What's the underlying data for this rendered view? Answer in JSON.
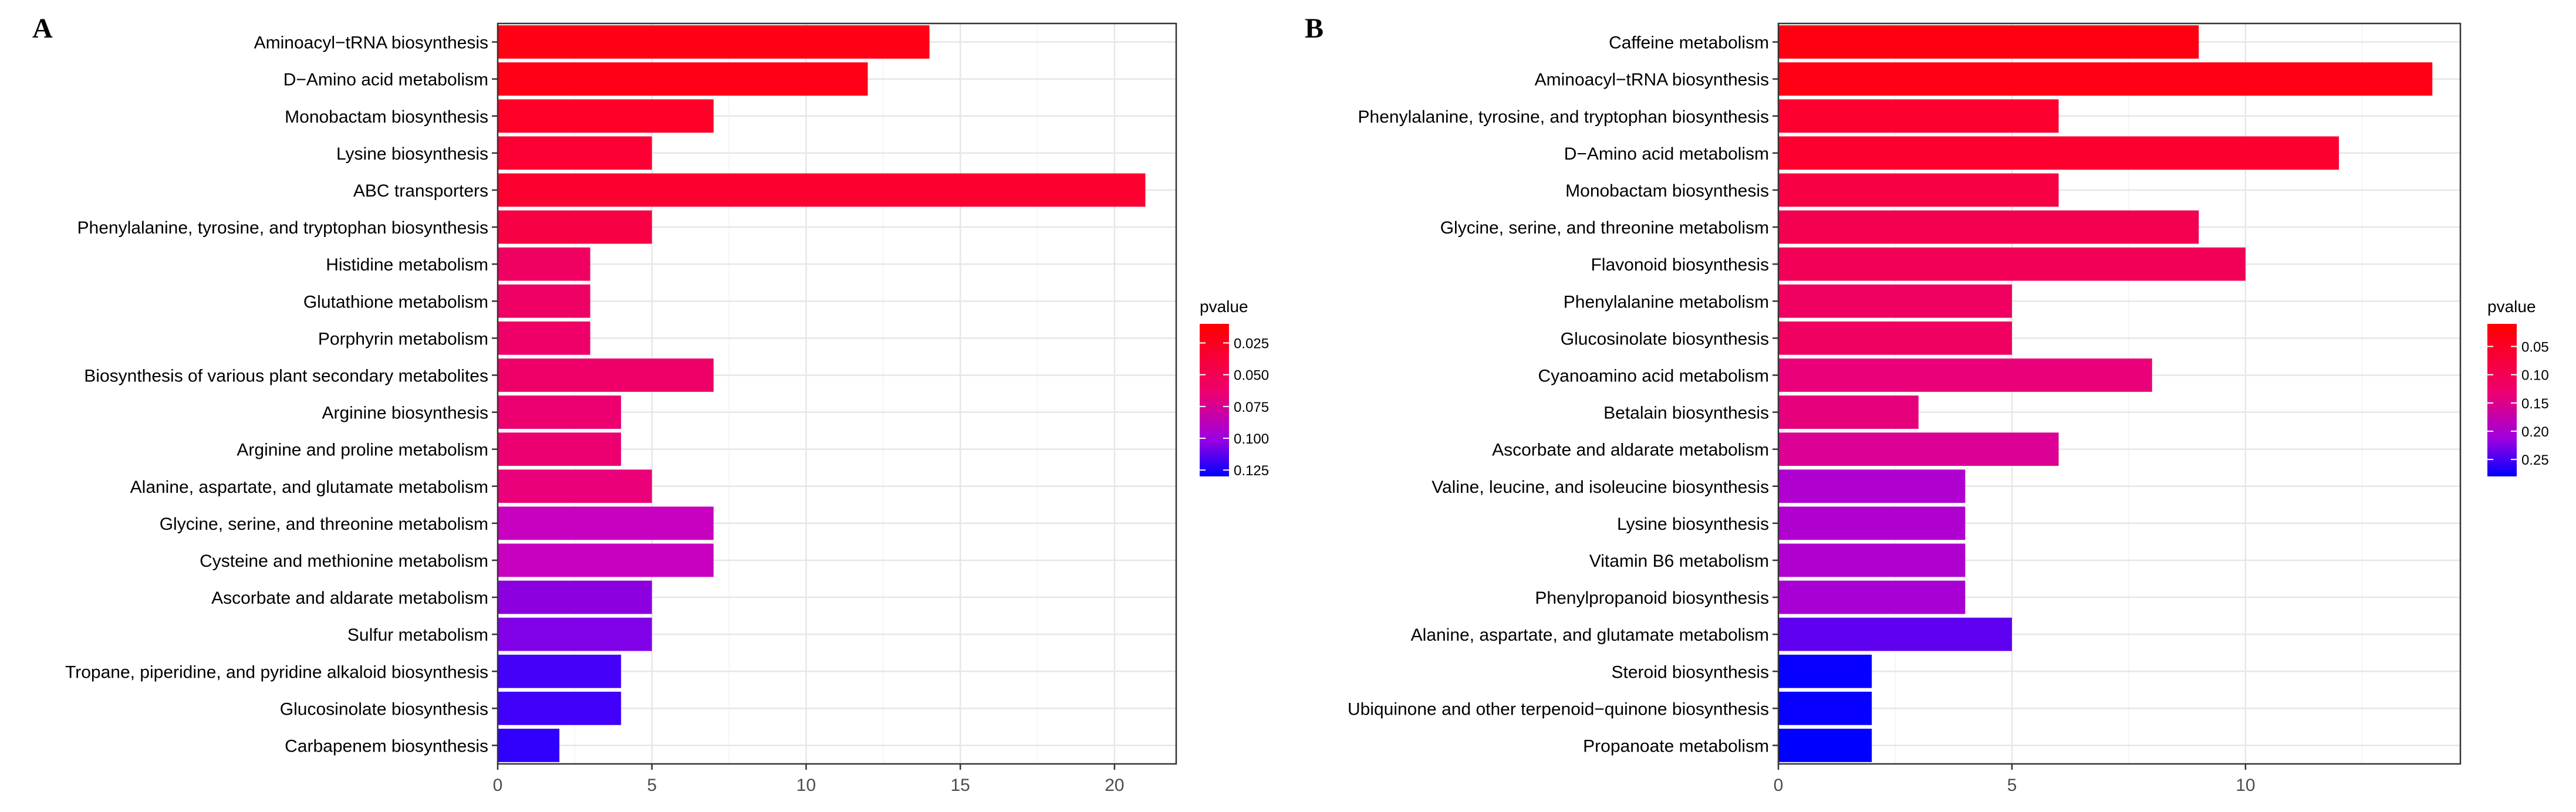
{
  "chart_data": [
    {
      "type": "bar",
      "orientation": "horizontal",
      "panel_label": "A",
      "title": "",
      "xlabel": "",
      "ylabel": "",
      "xlim": [
        0,
        22
      ],
      "x_ticks": [
        0,
        5,
        10,
        15,
        20
      ],
      "grid": true,
      "legend": {
        "title": "pvalue",
        "placement": "right",
        "ticks": [
          "0.025",
          "0.050",
          "0.075",
          "0.100",
          "0.125"
        ],
        "tick_values": [
          0.025,
          0.05,
          0.075,
          0.1,
          0.125
        ],
        "range": [
          0.01,
          0.13
        ],
        "low_color": "#ff0000",
        "high_color": "#0000ff"
      },
      "categories": [
        "Aminoacyl−tRNA biosynthesis",
        "D−Amino acid metabolism",
        "Monobactam biosynthesis",
        "Lysine biosynthesis",
        "ABC transporters",
        "Phenylalanine, tyrosine, and tryptophan biosynthesis",
        "Histidine metabolism",
        "Glutathione metabolism",
        "Porphyrin metabolism",
        "Biosynthesis of various plant secondary metabolites",
        "Arginine biosynthesis",
        "Arginine and proline metabolism",
        "Alanine, aspartate, and glutamate metabolism",
        "Glycine, serine, and threonine metabolism",
        "Cysteine and methionine metabolism",
        "Ascorbate and aldarate metabolism",
        "Sulfur metabolism",
        "Tropane, piperidine, and pyridine alkaloid biosynthesis",
        "Glucosinolate biosynthesis",
        "Carbapenem biosynthesis"
      ],
      "values": [
        14,
        12,
        7,
        5,
        21,
        5,
        3,
        3,
        3,
        7,
        4,
        4,
        5,
        7,
        7,
        5,
        5,
        4,
        4,
        2
      ],
      "colors": [
        "#ff0014",
        "#ff0018",
        "#fe0028",
        "#fc0034",
        "#fc0030",
        "#f80044",
        "#f00060",
        "#ef0064",
        "#ee0068",
        "#ee0068",
        "#ec0070",
        "#ec0070",
        "#ea0078",
        "#c800c0",
        "#c800c0",
        "#8c00e0",
        "#8000e8",
        "#4400f8",
        "#4000fa",
        "#3000fc"
      ]
    },
    {
      "type": "bar",
      "orientation": "horizontal",
      "panel_label": "B",
      "title": "",
      "xlabel": "",
      "ylabel": "",
      "xlim": [
        0,
        14.6
      ],
      "x_ticks": [
        0,
        5,
        10
      ],
      "grid": true,
      "legend": {
        "title": "pvalue",
        "placement": "right",
        "ticks": [
          "0.05",
          "0.10",
          "0.15",
          "0.20",
          "0.25"
        ],
        "tick_values": [
          0.05,
          0.1,
          0.15,
          0.2,
          0.25
        ],
        "range": [
          0.01,
          0.28
        ],
        "low_color": "#ff0000",
        "high_color": "#0000ff"
      },
      "categories": [
        "Caffeine metabolism",
        "Aminoacyl−tRNA biosynthesis",
        "Phenylalanine, tyrosine, and tryptophan biosynthesis",
        "D−Amino acid metabolism",
        "Monobactam biosynthesis",
        "Glycine, serine, and threonine metabolism",
        "Flavonoid biosynthesis",
        "Phenylalanine metabolism",
        "Glucosinolate biosynthesis",
        "Cyanoamino acid metabolism",
        "Betalain biosynthesis",
        "Ascorbate and aldarate metabolism",
        "Valine, leucine, and isoleucine biosynthesis",
        "Lysine biosynthesis",
        "Vitamin B6 metabolism",
        "Phenylpropanoid biosynthesis",
        "Alanine, aspartate, and glutamate metabolism",
        "Steroid biosynthesis",
        "Ubiquinone and other terpenoid−quinone biosynthesis",
        "Propanoate metabolism"
      ],
      "values": [
        9,
        14,
        6,
        12,
        6,
        9,
        10,
        5,
        5,
        8,
        3,
        6,
        4,
        4,
        4,
        4,
        5,
        2,
        2,
        2
      ],
      "colors": [
        "#ff0010",
        "#ff0014",
        "#fe0030",
        "#fe0030",
        "#f80044",
        "#f40050",
        "#f20058",
        "#f00060",
        "#f00060",
        "#ea0078",
        "#e6007c",
        "#dc0094",
        "#b000d0",
        "#b000d0",
        "#b000d0",
        "#a800d4",
        "#6000f0",
        "#0800ff",
        "#0800ff",
        "#0000ff"
      ]
    }
  ]
}
